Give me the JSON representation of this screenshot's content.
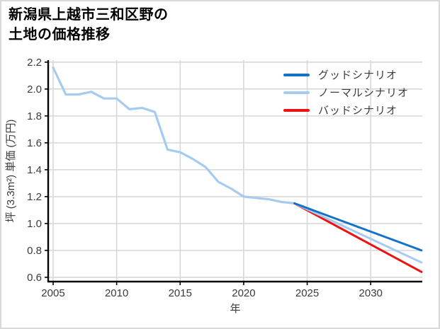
{
  "title": {
    "line1": "新潟県上越市三和区野の",
    "line2": "土地の価格推移"
  },
  "legend": {
    "items": [
      {
        "label": "グッドシナリオ",
        "color": "#1272c8"
      },
      {
        "label": "ノーマルシナリオ",
        "color": "#a6cbf1"
      },
      {
        "label": "バッドシナリオ",
        "color": "#ee1111"
      }
    ]
  },
  "chart_data": {
    "type": "line",
    "title": "新潟県上越市三和区野の土地の価格推移",
    "xlabel": "年",
    "ylabel": "坪 (3.3m²) 単価 (万円)",
    "xlim": [
      2004.61,
      2034.06
    ],
    "ylim": [
      0.568,
      2.215
    ],
    "x_ticks": [
      2005,
      2010,
      2015,
      2020,
      2025,
      2030
    ],
    "y_ticks": [
      0.6,
      0.8,
      1.0,
      1.2,
      1.4,
      1.6,
      1.8,
      2.0,
      2.2
    ],
    "grid": true,
    "legend_position": "upper right inside plot",
    "history": {
      "color": "#a6cbf1",
      "x": [
        2005,
        2006,
        2007,
        2008,
        2009,
        2010,
        2011,
        2012,
        2013,
        2014,
        2015,
        2016,
        2017,
        2018,
        2019,
        2020,
        2021,
        2022,
        2023,
        2024
      ],
      "values": [
        2.16,
        1.96,
        1.96,
        1.98,
        1.93,
        1.93,
        1.85,
        1.86,
        1.83,
        1.55,
        1.53,
        1.48,
        1.42,
        1.31,
        1.26,
        1.2,
        1.19,
        1.18,
        1.16,
        1.15
      ]
    },
    "forecast_series": [
      {
        "id": "good",
        "name": "グッドシナリオ",
        "color": "#1272c8",
        "x": [
          2024,
          2034
        ],
        "values": [
          1.15,
          0.8
        ]
      },
      {
        "id": "normal",
        "name": "ノーマルシナリオ",
        "color": "#a6cbf1",
        "x": [
          2024,
          2034
        ],
        "values": [
          1.15,
          0.71
        ]
      },
      {
        "id": "bad",
        "name": "バッドシナリオ",
        "color": "#ee1111",
        "x": [
          2024,
          2034
        ],
        "values": [
          1.15,
          0.64
        ]
      }
    ]
  }
}
